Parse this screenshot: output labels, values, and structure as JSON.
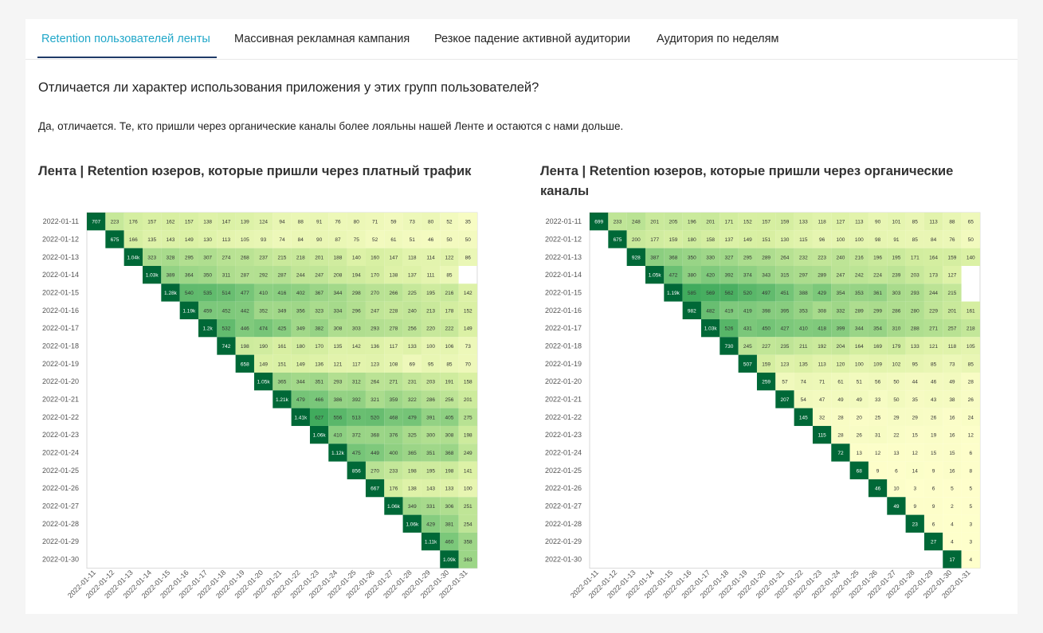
{
  "tabs": [
    {
      "label": "Retention пользователей ленты",
      "active": true
    },
    {
      "label": "Массивная рекламная кампания",
      "active": false
    },
    {
      "label": "Резкое падение активной аудитории",
      "active": false
    },
    {
      "label": "Аудитория по неделям",
      "active": false
    }
  ],
  "question": "Отличается ли характер использования приложения у этих групп пользователей?",
  "answer": "Да, отличается. Те, кто пришли через органические каналы более лояльны нашей Ленте и остаются с нами дольше.",
  "colors": {
    "accent": "#20a7c9",
    "tab_underline": "#1f3a68",
    "scale_low": "#ffffcc",
    "scale_mid": "#78c679",
    "scale_high": "#006837"
  },
  "chart_data": [
    {
      "type": "heatmap",
      "title": "Лента | Retention юзеров, которые пришли через платный трафик",
      "y_categories": [
        "2022-01-11",
        "2022-01-12",
        "2022-01-13",
        "2022-01-14",
        "2022-01-15",
        "2022-01-16",
        "2022-01-17",
        "2022-01-18",
        "2022-01-19",
        "2022-01-20",
        "2022-01-21",
        "2022-01-22",
        "2022-01-23",
        "2022-01-24",
        "2022-01-25",
        "2022-01-26",
        "2022-01-27",
        "2022-01-28",
        "2022-01-29",
        "2022-01-30"
      ],
      "x_categories": [
        "2022-01-11",
        "2022-01-12",
        "2022-01-13",
        "2022-01-14",
        "2022-01-15",
        "2022-01-16",
        "2022-01-17",
        "2022-01-18",
        "2022-01-19",
        "2022-01-20",
        "2022-01-21",
        "2022-01-22",
        "2022-01-23",
        "2022-01-24",
        "2022-01-25",
        "2022-01-26",
        "2022-01-27",
        "2022-01-28",
        "2022-01-29",
        "2022-01-30",
        "2022-01-31"
      ],
      "rows": [
        [
          "707",
          "223",
          "176",
          "157",
          "162",
          "157",
          "138",
          "147",
          "139",
          "124",
          "94",
          "88",
          "91",
          "76",
          "80",
          "71",
          "59",
          "73",
          "80",
          "52",
          "35"
        ],
        [
          "675",
          "166",
          "135",
          "143",
          "149",
          "130",
          "113",
          "105",
          "93",
          "74",
          "84",
          "90",
          "87",
          "75",
          "52",
          "61",
          "51",
          "46",
          "50",
          "50"
        ],
        [
          "1.04k",
          "323",
          "328",
          "295",
          "307",
          "274",
          "268",
          "237",
          "215",
          "218",
          "201",
          "188",
          "140",
          "160",
          "147",
          "118",
          "114",
          "122",
          "86"
        ],
        [
          "1.03k",
          "389",
          "364",
          "350",
          "311",
          "287",
          "292",
          "287",
          "244",
          "247",
          "208",
          "194",
          "170",
          "138",
          "137",
          "111",
          "85"
        ],
        [
          "1.28k",
          "540",
          "535",
          "514",
          "477",
          "410",
          "416",
          "402",
          "367",
          "344",
          "298",
          "270",
          "266",
          "225",
          "195",
          "216",
          "142"
        ],
        [
          "1.19k",
          "459",
          "452",
          "442",
          "352",
          "349",
          "356",
          "323",
          "334",
          "296",
          "247",
          "228",
          "240",
          "213",
          "178",
          "152"
        ],
        [
          "1.2k",
          "532",
          "446",
          "474",
          "425",
          "349",
          "382",
          "308",
          "303",
          "293",
          "278",
          "256",
          "220",
          "222",
          "149"
        ],
        [
          "742",
          "198",
          "190",
          "161",
          "180",
          "170",
          "135",
          "142",
          "136",
          "117",
          "133",
          "100",
          "106",
          "73"
        ],
        [
          "658",
          "149",
          "151",
          "149",
          "136",
          "121",
          "117",
          "123",
          "108",
          "69",
          "95",
          "85",
          "70"
        ],
        [
          "1.05k",
          "365",
          "344",
          "351",
          "293",
          "312",
          "264",
          "271",
          "231",
          "203",
          "191",
          "158"
        ],
        [
          "1.21k",
          "479",
          "466",
          "386",
          "392",
          "321",
          "359",
          "322",
          "286",
          "256",
          "201"
        ],
        [
          "1.41k",
          "627",
          "556",
          "513",
          "520",
          "468",
          "479",
          "391",
          "405",
          "275"
        ],
        [
          "1.06k",
          "410",
          "372",
          "368",
          "376",
          "325",
          "300",
          "308",
          "198"
        ],
        [
          "1.12k",
          "475",
          "449",
          "400",
          "365",
          "351",
          "368",
          "249"
        ],
        [
          "856",
          "270",
          "233",
          "198",
          "195",
          "198",
          "141"
        ],
        [
          "667",
          "176",
          "138",
          "143",
          "133",
          "100"
        ],
        [
          "1.06k",
          "349",
          "331",
          "306",
          "251"
        ],
        [
          "1.06k",
          "429",
          "381",
          "254"
        ],
        [
          "1.11k",
          "460",
          "358"
        ],
        [
          "1.09k",
          "363"
        ]
      ]
    },
    {
      "type": "heatmap",
      "title": "Лента | Retention юзеров, которые пришли через органические каналы",
      "y_categories": [
        "2022-01-11",
        "2022-01-12",
        "2022-01-13",
        "2022-01-14",
        "2022-01-15",
        "2022-01-16",
        "2022-01-17",
        "2022-01-18",
        "2022-01-19",
        "2022-01-20",
        "2022-01-21",
        "2022-01-22",
        "2022-01-23",
        "2022-01-24",
        "2022-01-25",
        "2022-01-26",
        "2022-01-27",
        "2022-01-28",
        "2022-01-29",
        "2022-01-30"
      ],
      "x_categories": [
        "2022-01-11",
        "2022-01-12",
        "2022-01-13",
        "2022-01-14",
        "2022-01-15",
        "2022-01-16",
        "2022-01-17",
        "2022-01-18",
        "2022-01-19",
        "2022-01-20",
        "2022-01-21",
        "2022-01-22",
        "2022-01-23",
        "2022-01-24",
        "2022-01-25",
        "2022-01-26",
        "2022-01-27",
        "2022-01-28",
        "2022-01-29",
        "2022-01-30",
        "2022-01-31"
      ],
      "rows": [
        [
          "699",
          "233",
          "248",
          "201",
          "205",
          "196",
          "201",
          "171",
          "152",
          "157",
          "159",
          "133",
          "118",
          "127",
          "113",
          "90",
          "101",
          "85",
          "113",
          "88",
          "65"
        ],
        [
          "675",
          "200",
          "177",
          "159",
          "180",
          "158",
          "137",
          "149",
          "151",
          "130",
          "115",
          "96",
          "100",
          "100",
          "98",
          "91",
          "85",
          "84",
          "76",
          "50"
        ],
        [
          "928",
          "387",
          "368",
          "350",
          "330",
          "327",
          "295",
          "289",
          "264",
          "232",
          "223",
          "240",
          "216",
          "196",
          "195",
          "171",
          "164",
          "159",
          "140"
        ],
        [
          "1.05k",
          "472",
          "380",
          "420",
          "392",
          "374",
          "343",
          "315",
          "297",
          "289",
          "247",
          "242",
          "224",
          "239",
          "203",
          "173",
          "127"
        ],
        [
          "1.19k",
          "585",
          "569",
          "562",
          "520",
          "497",
          "451",
          "388",
          "429",
          "354",
          "353",
          "361",
          "303",
          "293",
          "244",
          "215"
        ],
        [
          "982",
          "482",
          "419",
          "419",
          "398",
          "395",
          "353",
          "308",
          "332",
          "289",
          "299",
          "286",
          "280",
          "229",
          "201",
          "161"
        ],
        [
          "1.03k",
          "526",
          "431",
          "450",
          "427",
          "410",
          "418",
          "399",
          "344",
          "354",
          "310",
          "288",
          "271",
          "257",
          "218"
        ],
        [
          "730",
          "245",
          "227",
          "235",
          "211",
          "192",
          "204",
          "164",
          "169",
          "179",
          "133",
          "121",
          "118",
          "105"
        ],
        [
          "507",
          "159",
          "123",
          "135",
          "113",
          "120",
          "100",
          "109",
          "102",
          "95",
          "85",
          "73",
          "85"
        ],
        [
          "259",
          "57",
          "74",
          "71",
          "61",
          "51",
          "56",
          "50",
          "44",
          "46",
          "49",
          "28"
        ],
        [
          "207",
          "54",
          "47",
          "49",
          "49",
          "33",
          "50",
          "35",
          "43",
          "38",
          "26"
        ],
        [
          "145",
          "32",
          "28",
          "20",
          "25",
          "29",
          "29",
          "26",
          "16",
          "24"
        ],
        [
          "115",
          "28",
          "26",
          "31",
          "22",
          "15",
          "19",
          "16",
          "12"
        ],
        [
          "72",
          "13",
          "12",
          "13",
          "12",
          "15",
          "15",
          "6"
        ],
        [
          "68",
          "9",
          "6",
          "14",
          "9",
          "16",
          "8"
        ],
        [
          "46",
          "10",
          "3",
          "6",
          "5",
          "5"
        ],
        [
          "49",
          "9",
          "9",
          "2",
          "5"
        ],
        [
          "23",
          "6",
          "4",
          "3"
        ],
        [
          "27",
          "4",
          "3"
        ],
        [
          "17",
          "4"
        ]
      ]
    }
  ]
}
